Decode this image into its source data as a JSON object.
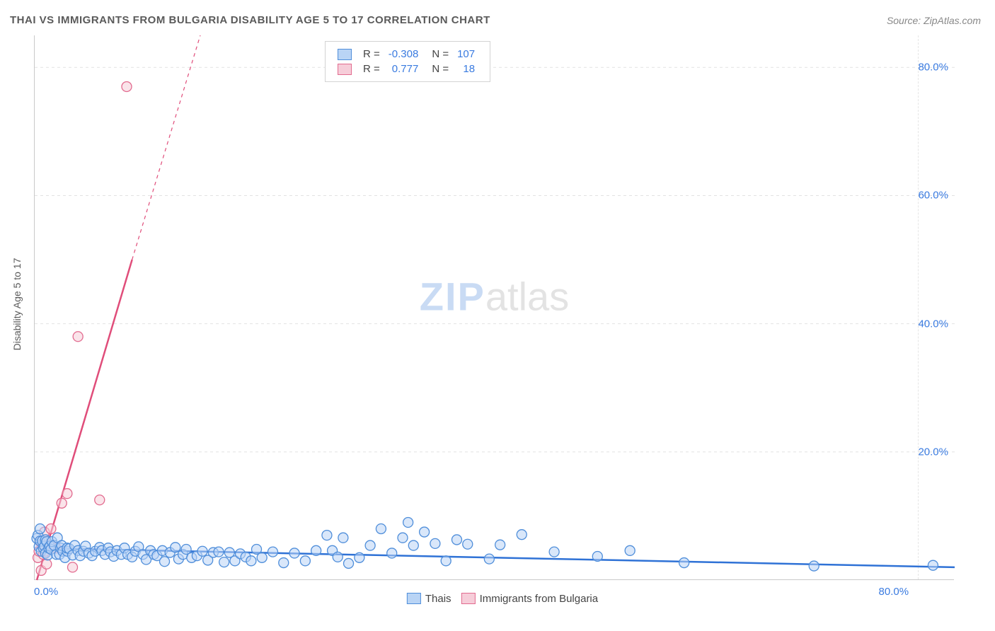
{
  "title": "THAI VS IMMIGRANTS FROM BULGARIA DISABILITY AGE 5 TO 17 CORRELATION CHART",
  "source": "Source: ZipAtlas.com",
  "ylabel": "Disability Age 5 to 17",
  "watermark": {
    "part1": "ZIP",
    "part2": "atlas"
  },
  "axes": {
    "xmin": 0,
    "xmax": 85,
    "ymin": 0,
    "ymax": 85,
    "yticks": [
      {
        "v": 20,
        "label": "20.0%"
      },
      {
        "v": 40,
        "label": "40.0%"
      },
      {
        "v": 60,
        "label": "60.0%"
      },
      {
        "v": 80,
        "label": "80.0%"
      }
    ],
    "xticks": [
      {
        "v": 0,
        "label": "0.0%"
      },
      {
        "v": 80,
        "label": "80.0%"
      }
    ],
    "grid_color": "#e2e2e2",
    "axis_color": "#c9c9c9",
    "label_color": "#3a7be0"
  },
  "series": {
    "thai": {
      "label": "Thais",
      "color_fill": "#b9d4f5",
      "color_stroke": "#4f8eda",
      "line_color": "#2f72d6",
      "marker_r": 7,
      "marker_opacity": 0.55,
      "R": "-0.308",
      "N": "107",
      "trend": {
        "x1": 0,
        "y1": 5.0,
        "x2": 85,
        "y2": 2.0,
        "width": 2.5
      },
      "points": [
        [
          0.2,
          6.5
        ],
        [
          0.3,
          7.0
        ],
        [
          0.4,
          5.2
        ],
        [
          0.5,
          6.1
        ],
        [
          0.5,
          8.0
        ],
        [
          0.6,
          4.5
        ],
        [
          0.7,
          6.1
        ],
        [
          0.8,
          5.0
        ],
        [
          0.9,
          5.3
        ],
        [
          1.0,
          6.3
        ],
        [
          1.0,
          4.2
        ],
        [
          1.1,
          6.0
        ],
        [
          1.2,
          3.9
        ],
        [
          1.3,
          5.0
        ],
        [
          1.4,
          5.3
        ],
        [
          1.5,
          4.8
        ],
        [
          1.6,
          6.0
        ],
        [
          1.8,
          5.4
        ],
        [
          2.0,
          4.0
        ],
        [
          2.1,
          6.6
        ],
        [
          2.3,
          4.0
        ],
        [
          2.4,
          5.0
        ],
        [
          2.5,
          5.4
        ],
        [
          2.6,
          4.5
        ],
        [
          2.8,
          3.5
        ],
        [
          3.0,
          4.5
        ],
        [
          3.0,
          5.0
        ],
        [
          3.2,
          4.9
        ],
        [
          3.5,
          3.9
        ],
        [
          3.7,
          5.4
        ],
        [
          4.0,
          4.6
        ],
        [
          4.2,
          3.8
        ],
        [
          4.5,
          4.5
        ],
        [
          4.7,
          5.3
        ],
        [
          5.0,
          4.2
        ],
        [
          5.3,
          3.8
        ],
        [
          5.6,
          4.5
        ],
        [
          6.0,
          5.1
        ],
        [
          6.2,
          4.6
        ],
        [
          6.5,
          4.0
        ],
        [
          6.8,
          5.0
        ],
        [
          7.0,
          4.4
        ],
        [
          7.3,
          3.7
        ],
        [
          7.6,
          4.6
        ],
        [
          8.0,
          4.0
        ],
        [
          8.3,
          5.0
        ],
        [
          8.6,
          4.0
        ],
        [
          9.0,
          3.6
        ],
        [
          9.3,
          4.5
        ],
        [
          9.6,
          5.2
        ],
        [
          10.0,
          4.0
        ],
        [
          10.3,
          3.2
        ],
        [
          10.7,
          4.6
        ],
        [
          11.0,
          4.0
        ],
        [
          11.3,
          3.8
        ],
        [
          11.8,
          4.6
        ],
        [
          12.0,
          2.9
        ],
        [
          12.5,
          4.3
        ],
        [
          13.0,
          5.1
        ],
        [
          13.3,
          3.3
        ],
        [
          13.7,
          4.0
        ],
        [
          14.0,
          4.8
        ],
        [
          14.5,
          3.5
        ],
        [
          15.0,
          3.8
        ],
        [
          15.5,
          4.5
        ],
        [
          16.0,
          3.1
        ],
        [
          16.5,
          4.3
        ],
        [
          17.0,
          4.4
        ],
        [
          17.5,
          2.8
        ],
        [
          18.0,
          4.3
        ],
        [
          18.5,
          3.0
        ],
        [
          19.0,
          4.1
        ],
        [
          19.5,
          3.6
        ],
        [
          20.0,
          3.0
        ],
        [
          20.5,
          4.8
        ],
        [
          21.0,
          3.5
        ],
        [
          22.0,
          4.4
        ],
        [
          23.0,
          2.7
        ],
        [
          24.0,
          4.2
        ],
        [
          25.0,
          3.0
        ],
        [
          26.0,
          4.6
        ],
        [
          27.0,
          7.0
        ],
        [
          27.5,
          4.6
        ],
        [
          28.0,
          3.6
        ],
        [
          28.5,
          6.6
        ],
        [
          29.0,
          2.6
        ],
        [
          30.0,
          3.5
        ],
        [
          31.0,
          5.4
        ],
        [
          32.0,
          8.0
        ],
        [
          33.0,
          4.2
        ],
        [
          34.0,
          6.6
        ],
        [
          34.5,
          9.0
        ],
        [
          35.0,
          5.4
        ],
        [
          36.0,
          7.5
        ],
        [
          37.0,
          5.7
        ],
        [
          38.0,
          3.0
        ],
        [
          39.0,
          6.3
        ],
        [
          40.0,
          5.6
        ],
        [
          42.0,
          3.3
        ],
        [
          43.0,
          5.5
        ],
        [
          45.0,
          7.1
        ],
        [
          48.0,
          4.4
        ],
        [
          52.0,
          3.7
        ],
        [
          55.0,
          4.6
        ],
        [
          60.0,
          2.7
        ],
        [
          72.0,
          2.2
        ],
        [
          83.0,
          2.3
        ]
      ]
    },
    "bulgaria": {
      "label": "Immigrants from Bulgaria",
      "color_fill": "#f6cdd9",
      "color_stroke": "#e26b8f",
      "line_color": "#e04d7a",
      "marker_r": 7,
      "marker_opacity": 0.55,
      "R": "0.777",
      "N": "18",
      "trend_solid": {
        "x1": 0.2,
        "y1": 0.0,
        "x2": 9.0,
        "y2": 50.0,
        "width": 2.5
      },
      "trend_dashed": {
        "x1": 9.0,
        "y1": 50.0,
        "x2": 15.3,
        "y2": 85.0,
        "width": 1.2,
        "dash": "5,5"
      },
      "points": [
        [
          0.3,
          3.5
        ],
        [
          0.4,
          4.5
        ],
        [
          0.5,
          6.0
        ],
        [
          0.6,
          1.5
        ],
        [
          0.7,
          5.5
        ],
        [
          0.8,
          4.0
        ],
        [
          0.9,
          7.5
        ],
        [
          1.0,
          4.5
        ],
        [
          1.1,
          2.5
        ],
        [
          1.3,
          5.5
        ],
        [
          1.5,
          8.0
        ],
        [
          2.0,
          5.0
        ],
        [
          2.5,
          12.0
        ],
        [
          3.0,
          13.5
        ],
        [
          3.5,
          2.0
        ],
        [
          4.0,
          38.0
        ],
        [
          6.0,
          12.5
        ],
        [
          8.5,
          77.0
        ]
      ]
    }
  },
  "legend_stats": {
    "r_label": "R =",
    "n_label": "N ="
  },
  "legend_bottom": {
    "items": [
      {
        "label": "Thais",
        "fill": "#b9d4f5",
        "stroke": "#4f8eda"
      },
      {
        "label": "Immigrants from Bulgaria",
        "fill": "#f6cdd9",
        "stroke": "#e26b8f"
      }
    ]
  }
}
